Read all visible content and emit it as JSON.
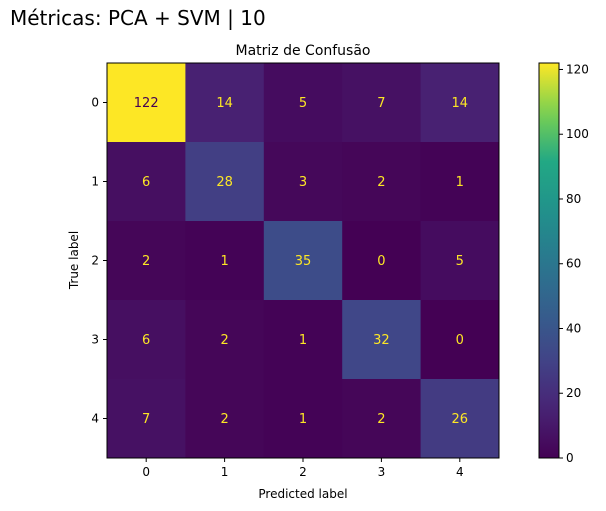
{
  "figure_title": "Métricas: PCA + SVM | 10",
  "chart_data": {
    "type": "heatmap",
    "title": "Matriz de Confusão",
    "xlabel": "Predicted label",
    "ylabel": "True label",
    "x_categories": [
      "0",
      "1",
      "2",
      "3",
      "4"
    ],
    "y_categories": [
      "0",
      "1",
      "2",
      "3",
      "4"
    ],
    "matrix": [
      [
        122,
        14,
        5,
        7,
        14
      ],
      [
        6,
        28,
        3,
        2,
        1
      ],
      [
        2,
        1,
        35,
        0,
        5
      ],
      [
        6,
        2,
        1,
        32,
        0
      ],
      [
        7,
        2,
        1,
        2,
        26
      ]
    ],
    "colormap": "viridis",
    "colorbar": {
      "range": [
        0,
        122
      ],
      "ticks": [
        0,
        20,
        40,
        60,
        80,
        100,
        120
      ]
    },
    "annotation_colors": {
      "on_dark": "#fde725",
      "on_light": "#440154"
    },
    "grid": false
  }
}
